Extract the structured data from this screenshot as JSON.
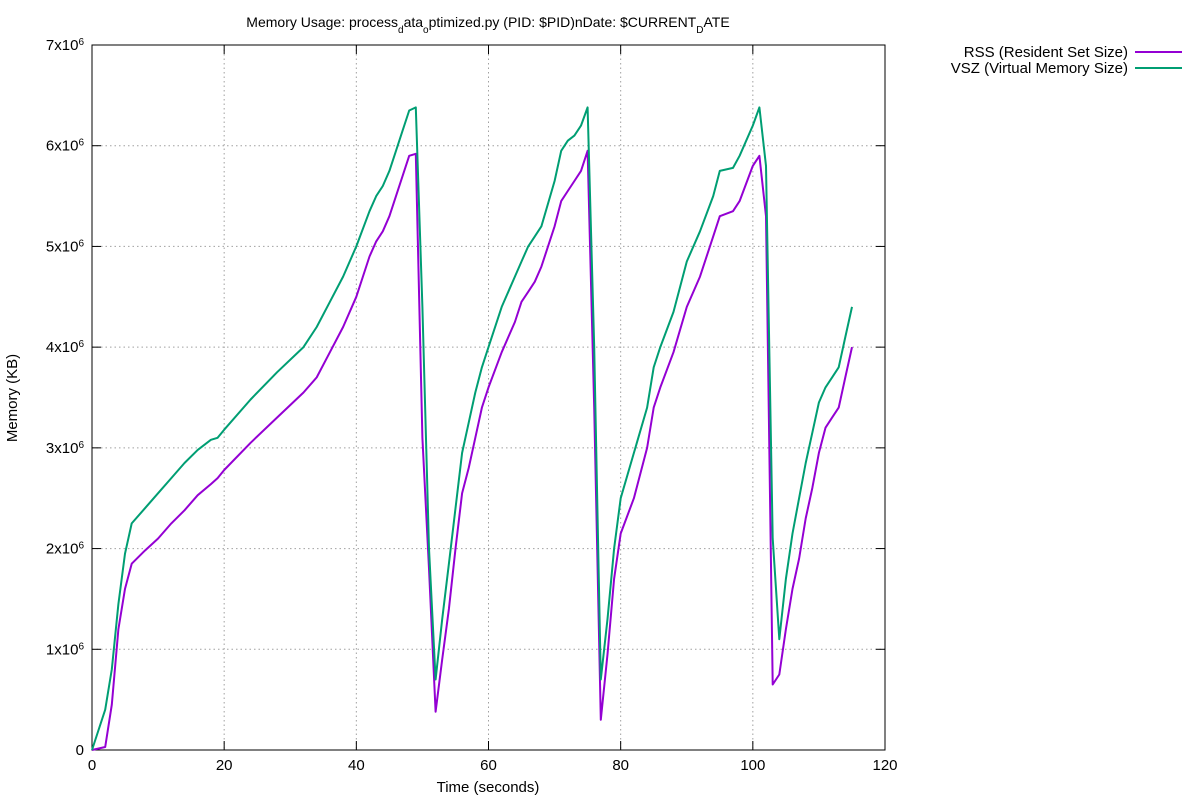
{
  "chart_data": {
    "type": "line",
    "title_parts": [
      {
        "text": "Memory Usage: process",
        "sub": false
      },
      {
        "text": "d",
        "sub": true
      },
      {
        "text": "ata",
        "sub": false
      },
      {
        "text": "o",
        "sub": true
      },
      {
        "text": "ptimized.py (PID: $PID)nDate: $CURRENT",
        "sub": false
      },
      {
        "text": "D",
        "sub": true
      },
      {
        "text": "ATE",
        "sub": false
      }
    ],
    "xlabel": "Time (seconds)",
    "ylabel": "Memory (KB)",
    "xlim": [
      0,
      120
    ],
    "ylim": [
      0,
      7000000
    ],
    "x_ticks": [
      0,
      20,
      40,
      60,
      80,
      100,
      120
    ],
    "x_tick_labels": [
      "0",
      "20",
      "40",
      "60",
      "80",
      "100",
      "120"
    ],
    "y_ticks": [
      0,
      1000000,
      2000000,
      3000000,
      4000000,
      5000000,
      6000000,
      7000000
    ],
    "y_tick_labels": [
      {
        "base": "0",
        "exp": ""
      },
      {
        "base": "1x10",
        "exp": "6"
      },
      {
        "base": "2x10",
        "exp": "6"
      },
      {
        "base": "3x10",
        "exp": "6"
      },
      {
        "base": "4x10",
        "exp": "6"
      },
      {
        "base": "5x10",
        "exp": "6"
      },
      {
        "base": "6x10",
        "exp": "6"
      },
      {
        "base": "7x10",
        "exp": "6"
      }
    ],
    "grid": true,
    "legend_position": "outside-top-right",
    "series": [
      {
        "name": "RSS (Resident Set Size)",
        "color": "#9400d3",
        "points": [
          [
            0,
            0
          ],
          [
            2,
            30000
          ],
          [
            3,
            450000
          ],
          [
            4,
            1200000
          ],
          [
            5,
            1600000
          ],
          [
            6,
            1850000
          ],
          [
            8,
            1980000
          ],
          [
            10,
            2100000
          ],
          [
            12,
            2250000
          ],
          [
            14,
            2380000
          ],
          [
            16,
            2530000
          ],
          [
            18,
            2640000
          ],
          [
            19,
            2700000
          ],
          [
            20,
            2780000
          ],
          [
            24,
            3050000
          ],
          [
            28,
            3300000
          ],
          [
            32,
            3550000
          ],
          [
            34,
            3700000
          ],
          [
            36,
            3950000
          ],
          [
            38,
            4200000
          ],
          [
            40,
            4500000
          ],
          [
            42,
            4900000
          ],
          [
            43,
            5050000
          ],
          [
            44,
            5150000
          ],
          [
            45,
            5300000
          ],
          [
            46,
            5500000
          ],
          [
            47,
            5700000
          ],
          [
            48,
            5900000
          ],
          [
            49,
            5920000
          ],
          [
            50,
            3100000
          ],
          [
            51,
            1800000
          ],
          [
            52,
            380000
          ],
          [
            53,
            900000
          ],
          [
            54,
            1400000
          ],
          [
            55,
            2000000
          ],
          [
            56,
            2550000
          ],
          [
            57,
            2800000
          ],
          [
            58,
            3100000
          ],
          [
            59,
            3400000
          ],
          [
            60,
            3600000
          ],
          [
            62,
            3950000
          ],
          [
            64,
            4250000
          ],
          [
            65,
            4450000
          ],
          [
            66,
            4550000
          ],
          [
            67,
            4650000
          ],
          [
            68,
            4800000
          ],
          [
            70,
            5200000
          ],
          [
            71,
            5450000
          ],
          [
            72,
            5550000
          ],
          [
            73,
            5650000
          ],
          [
            74,
            5750000
          ],
          [
            75,
            5950000
          ],
          [
            76,
            3400000
          ],
          [
            77,
            300000
          ],
          [
            78,
            950000
          ],
          [
            79,
            1700000
          ],
          [
            80,
            2150000
          ],
          [
            82,
            2500000
          ],
          [
            84,
            3000000
          ],
          [
            85,
            3400000
          ],
          [
            86,
            3600000
          ],
          [
            88,
            3950000
          ],
          [
            90,
            4400000
          ],
          [
            92,
            4700000
          ],
          [
            94,
            5100000
          ],
          [
            95,
            5300000
          ],
          [
            97,
            5350000
          ],
          [
            98,
            5450000
          ],
          [
            100,
            5800000
          ],
          [
            101,
            5900000
          ],
          [
            102,
            5300000
          ],
          [
            103,
            650000
          ],
          [
            104,
            750000
          ],
          [
            105,
            1200000
          ],
          [
            106,
            1600000
          ],
          [
            107,
            1900000
          ],
          [
            108,
            2300000
          ],
          [
            109,
            2600000
          ],
          [
            110,
            2950000
          ],
          [
            111,
            3200000
          ],
          [
            112,
            3300000
          ],
          [
            113,
            3400000
          ],
          [
            114,
            3700000
          ],
          [
            115,
            4000000
          ]
        ]
      },
      {
        "name": "VSZ (Virtual Memory Size)",
        "color": "#009e73",
        "points": [
          [
            0,
            0
          ],
          [
            2,
            400000
          ],
          [
            3,
            800000
          ],
          [
            4,
            1450000
          ],
          [
            5,
            1950000
          ],
          [
            6,
            2250000
          ],
          [
            8,
            2400000
          ],
          [
            10,
            2550000
          ],
          [
            12,
            2700000
          ],
          [
            14,
            2850000
          ],
          [
            16,
            2980000
          ],
          [
            18,
            3080000
          ],
          [
            19,
            3100000
          ],
          [
            20,
            3180000
          ],
          [
            24,
            3480000
          ],
          [
            28,
            3750000
          ],
          [
            32,
            4000000
          ],
          [
            34,
            4200000
          ],
          [
            36,
            4450000
          ],
          [
            38,
            4700000
          ],
          [
            40,
            5000000
          ],
          [
            42,
            5350000
          ],
          [
            43,
            5500000
          ],
          [
            44,
            5600000
          ],
          [
            45,
            5750000
          ],
          [
            46,
            5950000
          ],
          [
            47,
            6150000
          ],
          [
            48,
            6350000
          ],
          [
            49,
            6380000
          ],
          [
            50,
            4400000
          ],
          [
            51,
            2000000
          ],
          [
            52,
            700000
          ],
          [
            53,
            1300000
          ],
          [
            54,
            1850000
          ],
          [
            55,
            2400000
          ],
          [
            56,
            2950000
          ],
          [
            57,
            3250000
          ],
          [
            58,
            3550000
          ],
          [
            59,
            3800000
          ],
          [
            60,
            4000000
          ],
          [
            62,
            4400000
          ],
          [
            64,
            4700000
          ],
          [
            65,
            4850000
          ],
          [
            66,
            5000000
          ],
          [
            67,
            5100000
          ],
          [
            68,
            5200000
          ],
          [
            70,
            5650000
          ],
          [
            71,
            5950000
          ],
          [
            72,
            6050000
          ],
          [
            73,
            6100000
          ],
          [
            74,
            6200000
          ],
          [
            75,
            6380000
          ],
          [
            76,
            4000000
          ],
          [
            77,
            700000
          ],
          [
            78,
            1300000
          ],
          [
            79,
            2000000
          ],
          [
            80,
            2500000
          ],
          [
            82,
            2950000
          ],
          [
            84,
            3400000
          ],
          [
            85,
            3800000
          ],
          [
            86,
            4000000
          ],
          [
            88,
            4350000
          ],
          [
            90,
            4850000
          ],
          [
            92,
            5150000
          ],
          [
            94,
            5500000
          ],
          [
            95,
            5750000
          ],
          [
            97,
            5780000
          ],
          [
            98,
            5900000
          ],
          [
            100,
            6200000
          ],
          [
            101,
            6380000
          ],
          [
            102,
            5800000
          ],
          [
            103,
            2100000
          ],
          [
            104,
            1100000
          ],
          [
            105,
            1700000
          ],
          [
            106,
            2150000
          ],
          [
            107,
            2500000
          ],
          [
            108,
            2850000
          ],
          [
            109,
            3150000
          ],
          [
            110,
            3450000
          ],
          [
            111,
            3600000
          ],
          [
            112,
            3700000
          ],
          [
            113,
            3800000
          ],
          [
            114,
            4100000
          ],
          [
            115,
            4400000
          ]
        ]
      }
    ]
  }
}
